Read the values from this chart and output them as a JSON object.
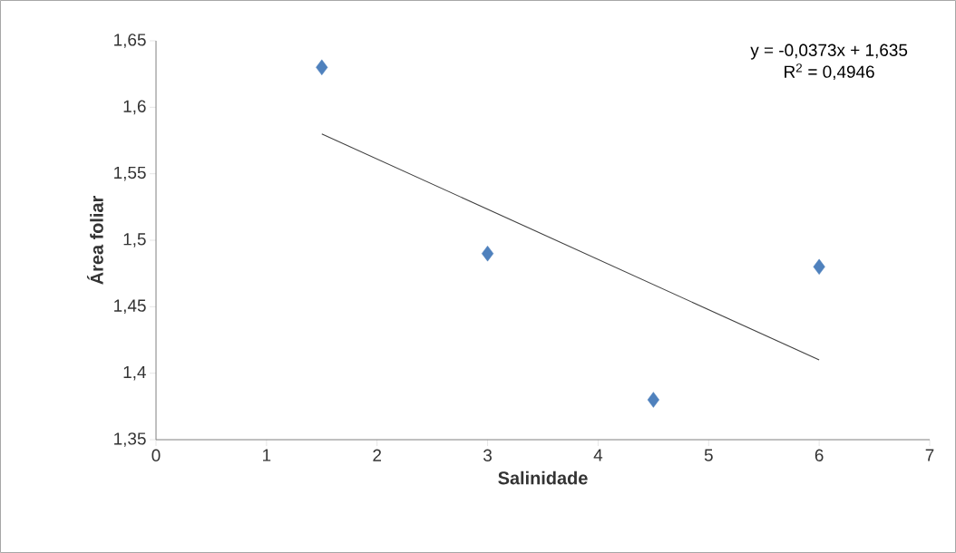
{
  "chart_data": {
    "type": "scatter",
    "xlabel": "Salinidade",
    "ylabel": "Área foliar",
    "annotations": [
      "y = -0,0373x + 1,635",
      "R$^{2}$ = 0,4946"
    ],
    "xlim": [
      0,
      7
    ],
    "xticks": [
      0,
      1,
      2,
      3,
      4,
      5,
      6,
      7
    ],
    "ylim": [
      1.35,
      1.65
    ],
    "yticks": [
      {
        "value": 1.35,
        "label": "1,35"
      },
      {
        "value": 1.4,
        "label": "1,4"
      },
      {
        "value": 1.45,
        "label": "1,45"
      },
      {
        "value": 1.5,
        "label": "1,5"
      },
      {
        "value": 1.55,
        "label": "1,55"
      },
      {
        "value": 1.6,
        "label": "1,6"
      },
      {
        "value": 1.65,
        "label": "1,65"
      }
    ],
    "series": [
      {
        "color": "#4f81bd",
        "marker": "diamond",
        "x": [
          1.5,
          3,
          4.5,
          6
        ],
        "values": [
          1.63,
          1.49,
          1.38,
          1.48
        ]
      },
      {
        "type": "line",
        "color": "#404040",
        "marker": "none",
        "x": [
          1.5,
          6
        ],
        "values": [
          1.58,
          1.41
        ]
      }
    ]
  }
}
